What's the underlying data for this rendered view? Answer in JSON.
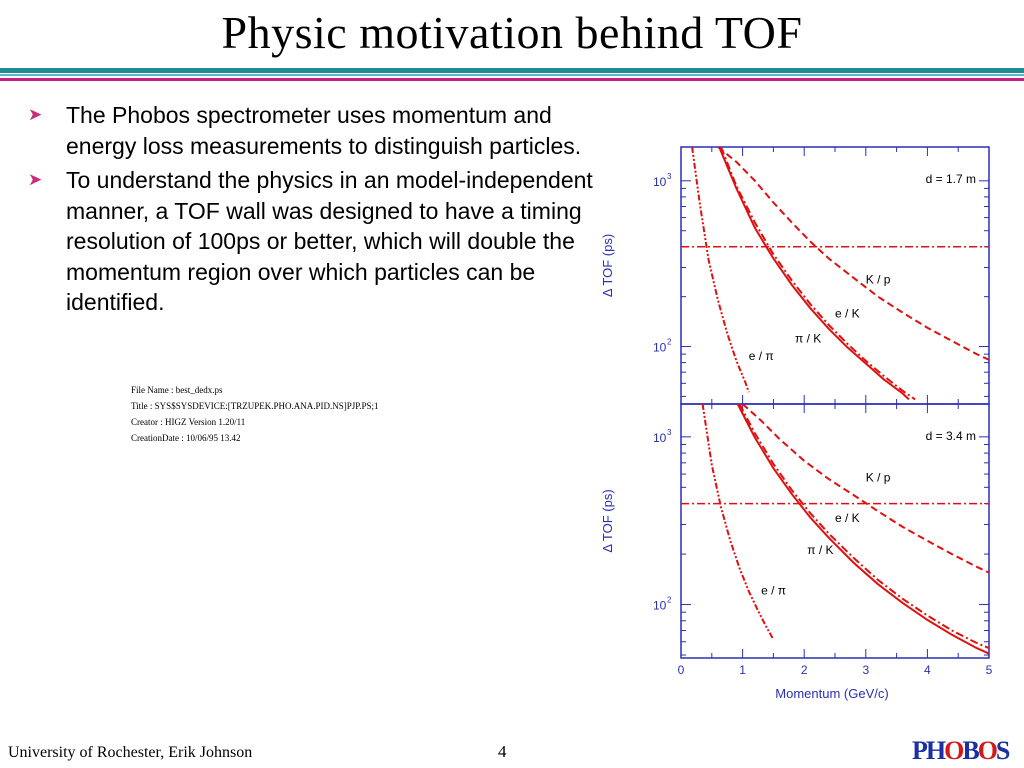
{
  "slide": {
    "title": "Physic motivation behind TOF",
    "bullets": [
      "The Phobos spectrometer uses momentum and energy loss measurements to distinguish particles.",
      "To understand the physics in an model-independent manner, a TOF wall was designed to have a timing resolution of 100ps or better, which will double the momentum region over which particles can be identified."
    ],
    "ps_info": [
      "File Name : best_dedx.ps",
      "Title :  SYS$SYSDEVICE:[TRZUPEK.PHO.ANA.PID.NS]PJP.PS;1",
      "Creator :  HIGZ Version 1.20/11",
      "CreationDate :  10/06/95    13.42"
    ],
    "footer": "University of Rochester, Erik Johnson",
    "page_number": "4",
    "logo": "PHOBOS"
  },
  "colors": {
    "accent_rule_teal": "#1f8a92",
    "accent_rule_magenta": "#c21f86",
    "bullet_arrow": "#cc2a7a",
    "axis_blue": "#2a2fb5",
    "curve_red": "#e01010"
  },
  "chart_data": [
    {
      "type": "line",
      "panel": "top",
      "annotation": "d = 1.7 m",
      "xlabel": "",
      "ylabel": "Δ TOF (ps)",
      "xlim": [
        0,
        5
      ],
      "ylim": [
        45,
        1600
      ],
      "ylog": true,
      "y_tick_labels": [
        "10",
        "10"
      ],
      "y_tick_exps": [
        "2",
        "3"
      ],
      "threshold": 400,
      "curve_labels": [
        {
          "text": "K / p",
          "x": 3.0,
          "y": 240
        },
        {
          "text": "e / K",
          "x": 2.5,
          "y": 150
        },
        {
          "text": "π / K",
          "x": 1.85,
          "y": 106
        },
        {
          "text": "e / π",
          "x": 1.1,
          "y": 83
        }
      ],
      "series": [
        {
          "style": "dash",
          "x": [
            0.6,
            0.9,
            1.2,
            1.5,
            1.8,
            2.1,
            2.4,
            2.8,
            3.2,
            3.6,
            4.0,
            4.4,
            4.8,
            5.0
          ],
          "y": [
            1600,
            1300,
            1000,
            740,
            560,
            430,
            340,
            260,
            200,
            160,
            130,
            108,
            90,
            83
          ]
        },
        {
          "style": "dashdot",
          "x": [
            0.65,
            0.9,
            1.2,
            1.5,
            1.8,
            2.1,
            2.4,
            2.7,
            3.0,
            3.3,
            3.6,
            3.8
          ],
          "y": [
            1600,
            930,
            560,
            360,
            250,
            180,
            135,
            104,
            82,
            66,
            54,
            48
          ]
        },
        {
          "style": "solid",
          "x": [
            0.62,
            0.9,
            1.2,
            1.5,
            1.8,
            2.1,
            2.4,
            2.7,
            3.0,
            3.3,
            3.6,
            3.7
          ],
          "y": [
            1600,
            900,
            520,
            340,
            235,
            170,
            128,
            99,
            79,
            63,
            52,
            48
          ]
        },
        {
          "style": "dashdotdot",
          "x": [
            0.18,
            0.3,
            0.45,
            0.6,
            0.75,
            0.9,
            1.05,
            1.1
          ],
          "y": [
            1600,
            750,
            330,
            190,
            120,
            82,
            60,
            53
          ]
        }
      ]
    },
    {
      "type": "line",
      "panel": "bottom",
      "annotation": "d = 3.4 m",
      "xlabel": "Momentum (GeV/c)",
      "ylabel": "Δ TOF (ps)",
      "xlim": [
        0,
        5
      ],
      "ylim": [
        48,
        1570
      ],
      "ylog": true,
      "x_ticks": [
        0,
        1,
        2,
        3,
        4,
        5
      ],
      "y_tick_labels": [
        "10",
        "10"
      ],
      "y_tick_exps": [
        "2",
        "3"
      ],
      "threshold": 400,
      "curve_labels": [
        {
          "text": "K / p",
          "x": 3.0,
          "y": 540
        },
        {
          "text": "e / K",
          "x": 2.5,
          "y": 310
        },
        {
          "text": "π / K",
          "x": 2.05,
          "y": 200
        },
        {
          "text": "e / π",
          "x": 1.3,
          "y": 115
        }
      ],
      "series": [
        {
          "style": "dash",
          "x": [
            1.0,
            1.3,
            1.6,
            2.0,
            2.4,
            2.8,
            3.2,
            3.6,
            4.0,
            4.4,
            4.8,
            5.0
          ],
          "y": [
            1570,
            1250,
            970,
            720,
            560,
            450,
            360,
            290,
            240,
            200,
            168,
            155
          ]
        },
        {
          "style": "dashdot",
          "x": [
            0.95,
            1.2,
            1.5,
            1.8,
            2.1,
            2.4,
            2.8,
            3.2,
            3.6,
            4.0,
            4.4,
            4.8,
            5.0
          ],
          "y": [
            1570,
            1050,
            690,
            480,
            350,
            265,
            190,
            140,
            108,
            86,
            70,
            59,
            55
          ]
        },
        {
          "style": "solid",
          "x": [
            0.92,
            1.2,
            1.5,
            1.8,
            2.1,
            2.4,
            2.8,
            3.2,
            3.6,
            4.0,
            4.4,
            4.8,
            5.0
          ],
          "y": [
            1570,
            990,
            650,
            455,
            330,
            250,
            178,
            132,
            102,
            81,
            66,
            55,
            51
          ]
        },
        {
          "style": "dashdotdot",
          "x": [
            0.35,
            0.5,
            0.65,
            0.8,
            0.95,
            1.1,
            1.25,
            1.4,
            1.5
          ],
          "y": [
            1570,
            680,
            380,
            240,
            165,
            120,
            92,
            72,
            62
          ]
        }
      ]
    }
  ]
}
